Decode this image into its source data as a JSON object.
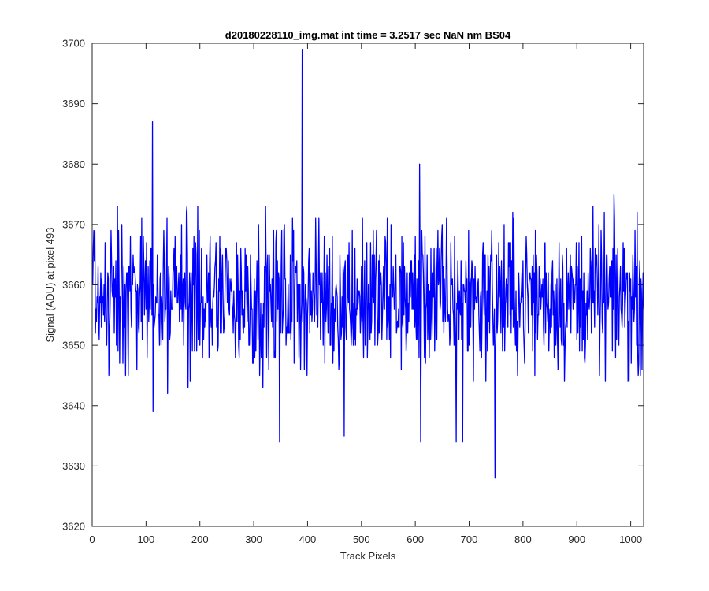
{
  "chart_data": {
    "type": "line",
    "title": "d20180228110_img.mat int time = 3.2517 sec  NaN nm BS04",
    "xlabel": "Track Pixels",
    "ylabel": "Signal (ADU) at pixel 493",
    "xlim": [
      0,
      1024
    ],
    "ylim": [
      3620,
      3700
    ],
    "xticks": [
      0,
      100,
      200,
      300,
      400,
      500,
      600,
      700,
      800,
      900,
      1000
    ],
    "yticks": [
      3620,
      3630,
      3640,
      3650,
      3660,
      3670,
      3680,
      3690,
      3700
    ],
    "grid": false,
    "legend": "none",
    "series": [
      {
        "color": "#0000ff",
        "n_points": 1024,
        "base_level": 3658,
        "noise_amplitude": 18,
        "notable_points": [
          {
            "x": 112,
            "y": 3687
          },
          {
            "x": 113,
            "y": 3639
          },
          {
            "x": 348,
            "y": 3634
          },
          {
            "x": 390,
            "y": 3699
          },
          {
            "x": 468,
            "y": 3635
          },
          {
            "x": 608,
            "y": 3680
          },
          {
            "x": 610,
            "y": 3634
          },
          {
            "x": 676,
            "y": 3634
          },
          {
            "x": 688,
            "y": 3634
          },
          {
            "x": 748,
            "y": 3628
          }
        ]
      }
    ]
  }
}
